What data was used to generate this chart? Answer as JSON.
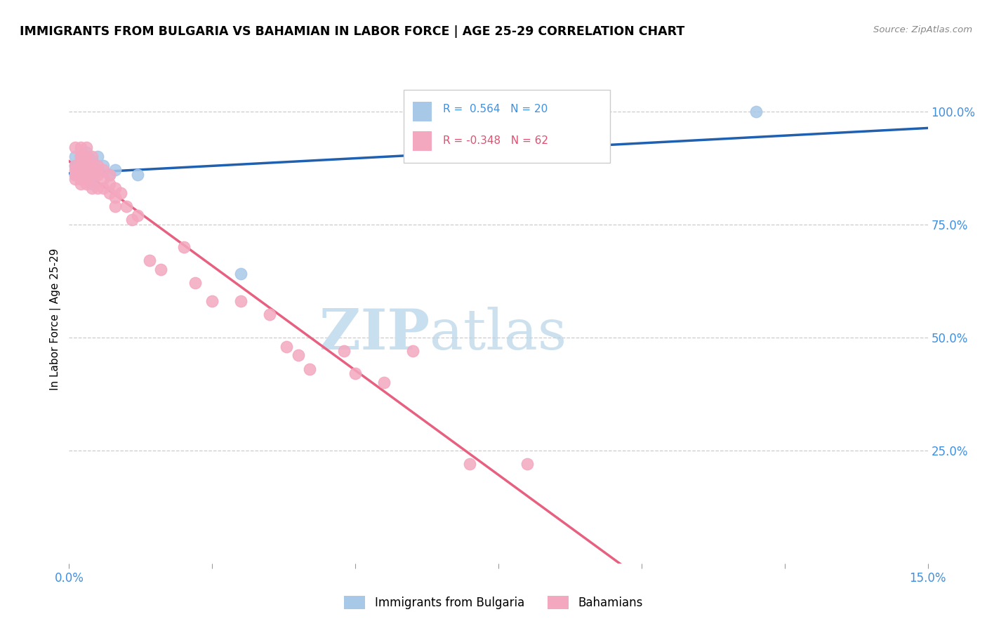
{
  "title": "IMMIGRANTS FROM BULGARIA VS BAHAMIAN IN LABOR FORCE | AGE 25-29 CORRELATION CHART",
  "source": "Source: ZipAtlas.com",
  "ylabel": "In Labor Force | Age 25-29",
  "ytick_labels": [
    "100.0%",
    "75.0%",
    "50.0%",
    "25.0%"
  ],
  "ytick_values": [
    1.0,
    0.75,
    0.5,
    0.25
  ],
  "xmin": 0.0,
  "xmax": 0.15,
  "ymin": 0.0,
  "ymax": 1.08,
  "legend_r_bulgaria": "0.564",
  "legend_n_bulgaria": "20",
  "legend_r_bahamian": "-0.348",
  "legend_n_bahamian": "62",
  "color_bulgaria": "#a8c8e8",
  "color_bahamian": "#f4a8c0",
  "color_bulgaria_line": "#2060b0",
  "color_bahamian_line": "#e86080",
  "color_blue_text": "#4090e0",
  "color_pink_text": "#e05070",
  "watermark_zip": "ZIP",
  "watermark_atlas": "atlas",
  "watermark_color": "#c8dff0",
  "bulgaria_x": [
    0.001,
    0.001,
    0.001,
    0.002,
    0.002,
    0.002,
    0.003,
    0.003,
    0.003,
    0.004,
    0.004,
    0.004,
    0.005,
    0.005,
    0.006,
    0.007,
    0.008,
    0.012,
    0.03,
    0.12
  ],
  "bulgaria_y": [
    0.88,
    0.86,
    0.9,
    0.87,
    0.9,
    0.86,
    0.88,
    0.91,
    0.86,
    0.87,
    0.89,
    0.84,
    0.87,
    0.9,
    0.88,
    0.86,
    0.87,
    0.86,
    0.64,
    1.0
  ],
  "bahamian_x": [
    0.001,
    0.001,
    0.001,
    0.001,
    0.001,
    0.002,
    0.002,
    0.002,
    0.002,
    0.002,
    0.002,
    0.002,
    0.002,
    0.002,
    0.002,
    0.003,
    0.003,
    0.003,
    0.003,
    0.003,
    0.003,
    0.003,
    0.003,
    0.003,
    0.004,
    0.004,
    0.004,
    0.004,
    0.004,
    0.005,
    0.005,
    0.005,
    0.005,
    0.006,
    0.006,
    0.006,
    0.007,
    0.007,
    0.007,
    0.008,
    0.008,
    0.008,
    0.009,
    0.01,
    0.011,
    0.012,
    0.014,
    0.016,
    0.02,
    0.022,
    0.025,
    0.03,
    0.035,
    0.038,
    0.04,
    0.042,
    0.048,
    0.05,
    0.055,
    0.06,
    0.07,
    0.08
  ],
  "bahamian_y": [
    0.88,
    0.87,
    0.86,
    0.92,
    0.85,
    0.9,
    0.88,
    0.86,
    0.92,
    0.87,
    0.85,
    0.88,
    0.84,
    0.9,
    0.86,
    0.9,
    0.88,
    0.87,
    0.92,
    0.85,
    0.88,
    0.86,
    0.84,
    0.9,
    0.88,
    0.86,
    0.85,
    0.83,
    0.9,
    0.88,
    0.86,
    0.83,
    0.87,
    0.87,
    0.85,
    0.83,
    0.84,
    0.82,
    0.86,
    0.83,
    0.81,
    0.79,
    0.82,
    0.79,
    0.76,
    0.77,
    0.67,
    0.65,
    0.7,
    0.62,
    0.58,
    0.58,
    0.55,
    0.48,
    0.46,
    0.43,
    0.47,
    0.42,
    0.4,
    0.47,
    0.22,
    0.22
  ]
}
